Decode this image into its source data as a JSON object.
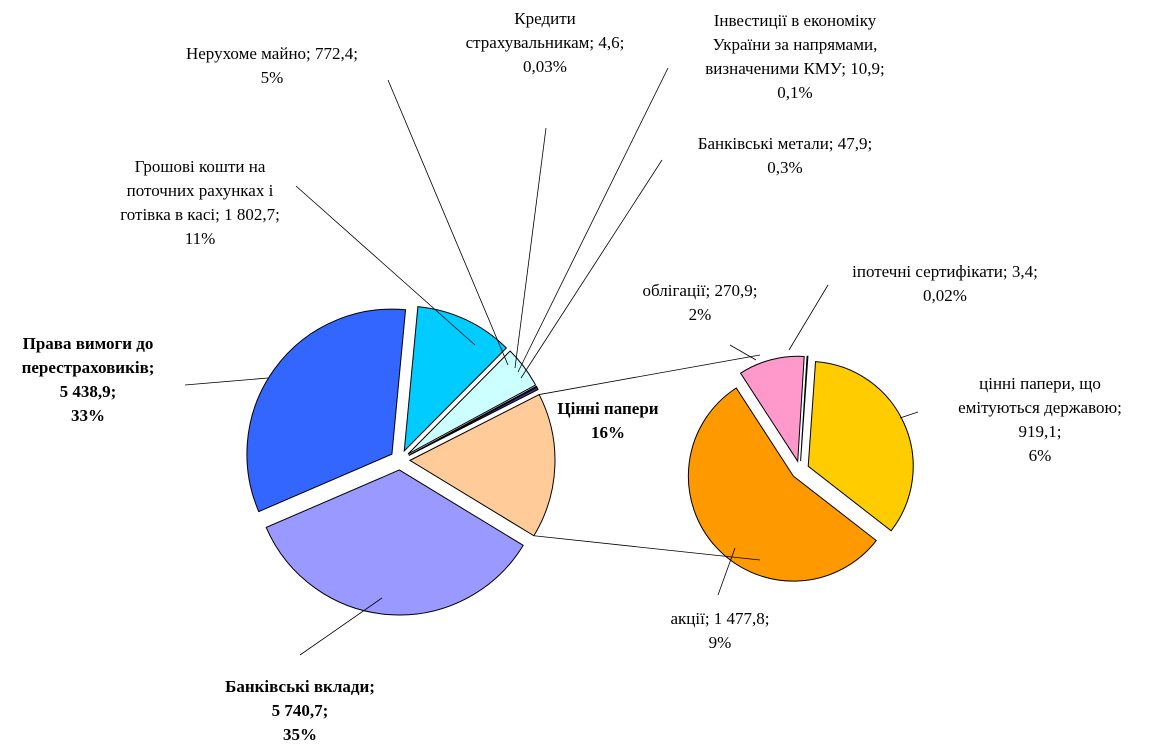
{
  "chart_data": [
    {
      "type": "pie",
      "labels": [
        [
          "Цінні папери",
          "16%"
        ],
        [
          "Банківські вклади;",
          "5 740,7;",
          "35%"
        ],
        [
          "Права вимоги до",
          "перестраховиків;",
          "5 438,9;",
          "33%"
        ],
        [
          "Грошові кошти на",
          "поточних рахунках і",
          "готівка в касі; 1 802,7;",
          "11%"
        ],
        [
          "Нерухоме майно; 772,4;",
          "5%"
        ],
        [
          "Кредити",
          "страхувальникам; 4,6;",
          "0,03%"
        ],
        [
          "Інвестиції в економіку",
          "України за напрямами,",
          "визначеними КМУ; 10,9;",
          "0,1%"
        ],
        [
          "Банківські метали; 47,9;",
          "0,3%"
        ]
      ],
      "values": [
        2671.2,
        5740.7,
        5438.9,
        1802.7,
        772.4,
        4.6,
        10.9,
        47.9
      ],
      "colors": [
        "#ffcc99",
        "#9999ff",
        "#3366ff",
        "#00ccff",
        "#ccffff",
        "#ff0000",
        "#993366",
        "#333399"
      ]
    },
    {
      "type": "pie",
      "labels": [
        [
          "цінні папери, що",
          "емітуються державою;",
          "919,1;",
          "6%"
        ],
        [
          "акції; 1 477,8;",
          "9%"
        ],
        [
          "облігації; 270,9;",
          "2%"
        ],
        [
          "іпотечні сертифікати; 3,4;",
          "0,02%"
        ]
      ],
      "values": [
        919.1,
        1477.8,
        270.9,
        3.4
      ],
      "colors": [
        "#ffcc00",
        "#ff9900",
        "#ff99cc",
        "#ccffcc"
      ]
    }
  ]
}
